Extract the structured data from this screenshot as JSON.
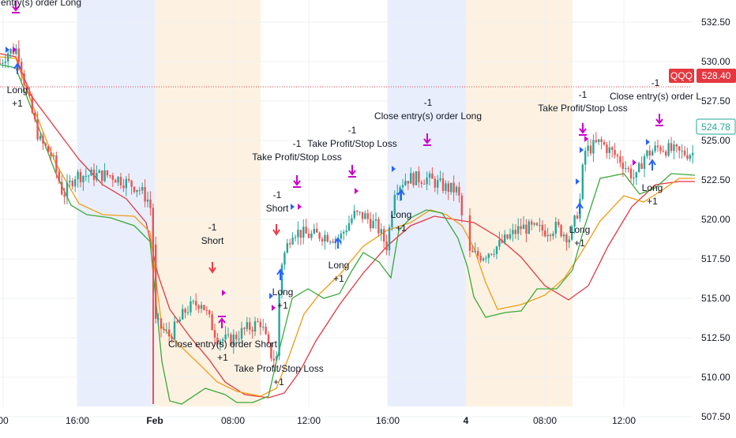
{
  "symbol_badge": "QQQ",
  "last_price_badge": "528.40",
  "current_price_badge": "524.78",
  "colors": {
    "session_blue": "#e8eefc",
    "session_orange": "#fdf2e2",
    "grid": "#eef0f3",
    "candle_up": "#26a69a",
    "candle_down": "#ef5350",
    "ma_red": "#e5373f",
    "ma_orange": "#f39c12",
    "ma_green": "#3aa83a",
    "signal_magenta": "#cc00cc",
    "signal_blue": "#2962ff",
    "signal_red": "#f23645",
    "last_price_line": "#e5373f",
    "badge_red": "#e5373f",
    "badge_teal": "#26a69a"
  },
  "chart_data": {
    "type": "candlestick",
    "title": "",
    "ylim": [
      506.4,
      533.9
    ],
    "y_ticks": [
      "532.50",
      "530.00",
      "527.50",
      "525.00",
      "522.50",
      "520.00",
      "517.50",
      "515.00",
      "512.50",
      "510.00",
      "507.50"
    ],
    "x_ticks": [
      "00",
      "16:00",
      "Feb",
      "08:00",
      "12:00",
      "16:00",
      "4",
      "08:00",
      "12:00"
    ],
    "grid": true,
    "last_price_line": 528.4,
    "series": [
      {
        "name": "QQQ",
        "kind": "candles",
        "price_path": [
          [
            0,
            529.9
          ],
          [
            10,
            530.6
          ],
          [
            22,
            530.8
          ],
          [
            34,
            528.0
          ],
          [
            50,
            525.0
          ],
          [
            66,
            524.0
          ],
          [
            80,
            521.5
          ],
          [
            95,
            522.8
          ],
          [
            110,
            522.8
          ],
          [
            140,
            522.8
          ],
          [
            175,
            522.0
          ],
          [
            188,
            521.2
          ],
          [
            193,
            520.3
          ],
          [
            196,
            513.5
          ],
          [
            215,
            512.6
          ],
          [
            236,
            514.3
          ],
          [
            255,
            514.8
          ],
          [
            275,
            512.5
          ],
          [
            290,
            512.3
          ],
          [
            310,
            513.0
          ],
          [
            330,
            513.5
          ],
          [
            342,
            511.5
          ],
          [
            350,
            511.0
          ],
          [
            355,
            517.0
          ],
          [
            370,
            519.3
          ],
          [
            390,
            519.0
          ],
          [
            410,
            519.0
          ],
          [
            430,
            518.8
          ],
          [
            448,
            520.3
          ],
          [
            462,
            520.2
          ],
          [
            478,
            519.5
          ],
          [
            490,
            518.3
          ],
          [
            500,
            522.0
          ],
          [
            515,
            522.6
          ],
          [
            540,
            522.6
          ],
          [
            565,
            522.0
          ],
          [
            580,
            521.8
          ],
          [
            592,
            517.8
          ],
          [
            610,
            517.7
          ],
          [
            630,
            518.3
          ],
          [
            660,
            519.5
          ],
          [
            690,
            519.3
          ],
          [
            705,
            519.5
          ],
          [
            722,
            518.8
          ],
          [
            734,
            521.0
          ],
          [
            740,
            524.3
          ],
          [
            760,
            524.9
          ],
          [
            785,
            523.8
          ],
          [
            805,
            522.5
          ],
          [
            815,
            524.0
          ],
          [
            835,
            524.6
          ],
          [
            860,
            524.2
          ],
          [
            880,
            524.2
          ]
        ]
      },
      {
        "name": "",
        "kind": "line",
        "color": "red",
        "points": [
          [
            0,
            530.5
          ],
          [
            20,
            530.3
          ],
          [
            40,
            527.8
          ],
          [
            70,
            525.8
          ],
          [
            100,
            523.8
          ],
          [
            130,
            522.2
          ],
          [
            160,
            521.3
          ],
          [
            185,
            519.8
          ],
          [
            200,
            516.5
          ],
          [
            215,
            514.3
          ],
          [
            240,
            512.6
          ],
          [
            265,
            511.1
          ],
          [
            285,
            509.7
          ],
          [
            310,
            508.9
          ],
          [
            340,
            508.7
          ],
          [
            360,
            509.0
          ],
          [
            380,
            510.4
          ],
          [
            400,
            512.3
          ],
          [
            430,
            514.6
          ],
          [
            460,
            516.6
          ],
          [
            490,
            518.3
          ],
          [
            520,
            519.6
          ],
          [
            550,
            520.2
          ],
          [
            575,
            520.0
          ],
          [
            600,
            519.8
          ],
          [
            630,
            518.9
          ],
          [
            660,
            517.6
          ],
          [
            690,
            515.8
          ],
          [
            720,
            514.9
          ],
          [
            745,
            515.8
          ],
          [
            770,
            518.3
          ],
          [
            800,
            520.8
          ],
          [
            830,
            522.2
          ],
          [
            860,
            522.4
          ],
          [
            880,
            522.4
          ]
        ]
      },
      {
        "name": "",
        "kind": "line",
        "color": "orange",
        "points": [
          [
            0,
            530.3
          ],
          [
            20,
            530.2
          ],
          [
            40,
            527.4
          ],
          [
            70,
            523.6
          ],
          [
            100,
            521.0
          ],
          [
            130,
            520.3
          ],
          [
            170,
            520.2
          ],
          [
            190,
            519.2
          ],
          [
            205,
            513.2
          ],
          [
            230,
            511.9
          ],
          [
            255,
            510.7
          ],
          [
            275,
            509.7
          ],
          [
            300,
            509.1
          ],
          [
            330,
            508.8
          ],
          [
            350,
            509.3
          ],
          [
            365,
            511.2
          ],
          [
            385,
            514.0
          ],
          [
            405,
            515.3
          ],
          [
            430,
            516.5
          ],
          [
            460,
            518.3
          ],
          [
            490,
            519.3
          ],
          [
            520,
            519.8
          ],
          [
            545,
            520.6
          ],
          [
            565,
            520.3
          ],
          [
            585,
            519.6
          ],
          [
            600,
            518.2
          ],
          [
            615,
            516.0
          ],
          [
            630,
            514.3
          ],
          [
            660,
            514.6
          ],
          [
            690,
            515.2
          ],
          [
            715,
            516.3
          ],
          [
            735,
            517.8
          ],
          [
            760,
            519.9
          ],
          [
            790,
            521.5
          ],
          [
            815,
            521.1
          ],
          [
            840,
            521.9
          ],
          [
            860,
            522.6
          ],
          [
            880,
            522.6
          ]
        ]
      },
      {
        "name": "",
        "kind": "line",
        "color": "green",
        "points": [
          [
            0,
            529.8
          ],
          [
            20,
            529.6
          ],
          [
            40,
            527.0
          ],
          [
            70,
            523.0
          ],
          [
            90,
            520.9
          ],
          [
            110,
            520.3
          ],
          [
            140,
            520.1
          ],
          [
            170,
            519.6
          ],
          [
            190,
            518.6
          ],
          [
            205,
            511.0
          ],
          [
            215,
            508.5
          ],
          [
            230,
            508.3
          ],
          [
            260,
            509.3
          ],
          [
            285,
            508.9
          ],
          [
            300,
            508.4
          ],
          [
            320,
            508.4
          ],
          [
            340,
            508.8
          ],
          [
            350,
            511.0
          ],
          [
            370,
            515.0
          ],
          [
            390,
            515.6
          ],
          [
            410,
            515.0
          ],
          [
            430,
            515.3
          ],
          [
            445,
            516.7
          ],
          [
            460,
            517.9
          ],
          [
            480,
            517.3
          ],
          [
            495,
            516.3
          ],
          [
            505,
            519.3
          ],
          [
            520,
            520.1
          ],
          [
            540,
            520.6
          ],
          [
            560,
            520.4
          ],
          [
            580,
            518.8
          ],
          [
            592,
            517.0
          ],
          [
            600,
            515.1
          ],
          [
            615,
            513.8
          ],
          [
            640,
            514.1
          ],
          [
            660,
            514.2
          ],
          [
            680,
            515.6
          ],
          [
            705,
            515.6
          ],
          [
            725,
            516.8
          ],
          [
            740,
            519.5
          ],
          [
            760,
            522.6
          ],
          [
            790,
            522.9
          ],
          [
            810,
            521.6
          ],
          [
            830,
            522.0
          ],
          [
            850,
            522.9
          ],
          [
            880,
            522.8
          ]
        ]
      }
    ]
  },
  "signals": [
    {
      "id": "close-long-1",
      "lines": [
        "Close entry(s) order Long"
      ]
    },
    {
      "id": "long-1",
      "lines": [
        "Long",
        "+1"
      ]
    },
    {
      "id": "short-1",
      "lines": [
        "-1",
        "Short"
      ]
    },
    {
      "id": "close-short-1",
      "lines": [
        "Close entry(s) order Short",
        "+1"
      ]
    },
    {
      "id": "long-2",
      "lines": [
        "Long",
        "+1"
      ]
    },
    {
      "id": "tp-sl-1",
      "lines": [
        "Take Profit/Stop Loss",
        "+1"
      ]
    },
    {
      "id": "short-2",
      "lines": [
        "-1",
        "Short"
      ]
    },
    {
      "id": "tp-sl-2",
      "lines": [
        "-1",
        "Take Profit/Stop Loss"
      ]
    },
    {
      "id": "long-3",
      "lines": [
        "Long",
        "+1"
      ]
    },
    {
      "id": "tp-sl-3",
      "lines": [
        "-1",
        "Take Profit/Stop Loss"
      ]
    },
    {
      "id": "long-4",
      "lines": [
        "Long",
        "+1"
      ]
    },
    {
      "id": "close-long-2",
      "lines": [
        "-1",
        "Close entry(s) order Long"
      ]
    },
    {
      "id": "tp-sl-4",
      "lines": [
        "-1",
        "Take Profit/Stop Loss"
      ]
    },
    {
      "id": "long-5",
      "lines": [
        "Long",
        "+1"
      ]
    },
    {
      "id": "close-long-3",
      "lines": [
        "-1",
        "Close entry(s) order L"
      ]
    },
    {
      "id": "long-6",
      "lines": [
        "Long",
        "+1"
      ]
    }
  ]
}
